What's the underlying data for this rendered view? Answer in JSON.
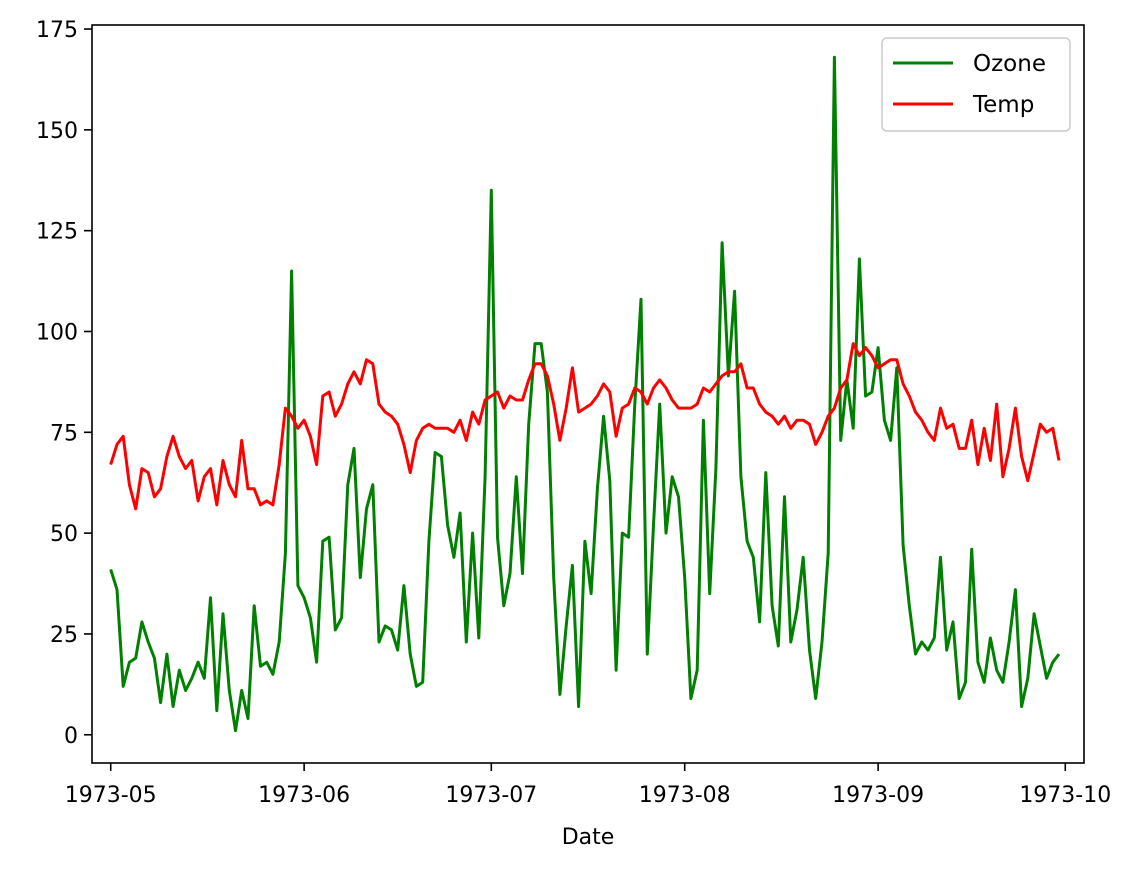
{
  "chart_data": {
    "type": "line",
    "title": "",
    "xlabel": "Date",
    "ylabel": "",
    "x_ticks": [
      "1973-05",
      "1973-06",
      "1973-07",
      "1973-08",
      "1973-09",
      "1973-10"
    ],
    "y_ticks": [
      0,
      25,
      50,
      75,
      100,
      125,
      150,
      175
    ],
    "xlim": [
      "1973-04-28",
      "1973-10-04"
    ],
    "ylim": [
      -7,
      176
    ],
    "grid": false,
    "legend_position": "top-right",
    "x": [
      "1973-05-01",
      "1973-05-02",
      "1973-05-03",
      "1973-05-04",
      "1973-05-05",
      "1973-05-06",
      "1973-05-07",
      "1973-05-08",
      "1973-05-09",
      "1973-05-10",
      "1973-05-11",
      "1973-05-12",
      "1973-05-13",
      "1973-05-14",
      "1973-05-15",
      "1973-05-16",
      "1973-05-17",
      "1973-05-18",
      "1973-05-19",
      "1973-05-20",
      "1973-05-21",
      "1973-05-22",
      "1973-05-23",
      "1973-05-24",
      "1973-05-25",
      "1973-05-26",
      "1973-05-27",
      "1973-05-28",
      "1973-05-29",
      "1973-05-30",
      "1973-05-31",
      "1973-06-01",
      "1973-06-02",
      "1973-06-03",
      "1973-06-04",
      "1973-06-05",
      "1973-06-06",
      "1973-06-07",
      "1973-06-08",
      "1973-06-09",
      "1973-06-10",
      "1973-06-11",
      "1973-06-12",
      "1973-06-13",
      "1973-06-14",
      "1973-06-15",
      "1973-06-16",
      "1973-06-17",
      "1973-06-18",
      "1973-06-19",
      "1973-06-20",
      "1973-06-21",
      "1973-06-22",
      "1973-06-23",
      "1973-06-24",
      "1973-06-25",
      "1973-06-26",
      "1973-06-27",
      "1973-06-28",
      "1973-06-29",
      "1973-06-30",
      "1973-07-01",
      "1973-07-02",
      "1973-07-03",
      "1973-07-04",
      "1973-07-05",
      "1973-07-06",
      "1973-07-07",
      "1973-07-08",
      "1973-07-09",
      "1973-07-10",
      "1973-07-11",
      "1973-07-12",
      "1973-07-13",
      "1973-07-14",
      "1973-07-15",
      "1973-07-16",
      "1973-07-17",
      "1973-07-18",
      "1973-07-19",
      "1973-07-20",
      "1973-07-21",
      "1973-07-22",
      "1973-07-23",
      "1973-07-24",
      "1973-07-25",
      "1973-07-26",
      "1973-07-27",
      "1973-07-28",
      "1973-07-29",
      "1973-07-30",
      "1973-07-31",
      "1973-08-01",
      "1973-08-02",
      "1973-08-03",
      "1973-08-04",
      "1973-08-05",
      "1973-08-06",
      "1973-08-07",
      "1973-08-08",
      "1973-08-09",
      "1973-08-10",
      "1973-08-11",
      "1973-08-12",
      "1973-08-13",
      "1973-08-14",
      "1973-08-15",
      "1973-08-16",
      "1973-08-17",
      "1973-08-18",
      "1973-08-19",
      "1973-08-20",
      "1973-08-21",
      "1973-08-22",
      "1973-08-23",
      "1973-08-24",
      "1973-08-25",
      "1973-08-26",
      "1973-08-27",
      "1973-08-28",
      "1973-08-29",
      "1973-08-30",
      "1973-08-31",
      "1973-09-01",
      "1973-09-02",
      "1973-09-03",
      "1973-09-04",
      "1973-09-05",
      "1973-09-06",
      "1973-09-07",
      "1973-09-08",
      "1973-09-09",
      "1973-09-10",
      "1973-09-11",
      "1973-09-12",
      "1973-09-13",
      "1973-09-14",
      "1973-09-15",
      "1973-09-16",
      "1973-09-17",
      "1973-09-18",
      "1973-09-19",
      "1973-09-20",
      "1973-09-21",
      "1973-09-22",
      "1973-09-23",
      "1973-09-24",
      "1973-09-25",
      "1973-09-26",
      "1973-09-27",
      "1973-09-28",
      "1973-09-29",
      "1973-09-30"
    ],
    "series": [
      {
        "name": "Ozone",
        "color": "#008000",
        "values": [
          41,
          36,
          12,
          18,
          19,
          28,
          23,
          19,
          8,
          20,
          7,
          16,
          11,
          14,
          18,
          14,
          34,
          6,
          30,
          11,
          1,
          11,
          4,
          32,
          17,
          18,
          15,
          23,
          45,
          115,
          37,
          34,
          29,
          18,
          48,
          49,
          26,
          29,
          62,
          71,
          39,
          56,
          62,
          23,
          27,
          26,
          21,
          37,
          20,
          12,
          13,
          48,
          70,
          69,
          52,
          44,
          55,
          23,
          50,
          24,
          64,
          135,
          49,
          32,
          40,
          64,
          40,
          77,
          97,
          97,
          85,
          39,
          10,
          27,
          42,
          7,
          48,
          35,
          61,
          79,
          63,
          16,
          50,
          49,
          82,
          108,
          20,
          52,
          82,
          50,
          64,
          59,
          39,
          9,
          16,
          78,
          35,
          66,
          122,
          89,
          110,
          64,
          48,
          44,
          28,
          65,
          32,
          22,
          59,
          23,
          31,
          44,
          21,
          9,
          23,
          45,
          168,
          73,
          88,
          76,
          118,
          84,
          85,
          96,
          78,
          73,
          91,
          47,
          32,
          20,
          23,
          21,
          24,
          44,
          21,
          28,
          9,
          13,
          46,
          18,
          13,
          24,
          16,
          13,
          23,
          36,
          7,
          14,
          30,
          22,
          14,
          18,
          20
        ]
      },
      {
        "name": "Temp",
        "color": "#ff0000",
        "values": [
          67,
          72,
          74,
          62,
          56,
          66,
          65,
          59,
          61,
          69,
          74,
          69,
          66,
          68,
          58,
          64,
          66,
          57,
          68,
          62,
          59,
          73,
          61,
          61,
          57,
          58,
          57,
          67,
          81,
          79,
          76,
          78,
          74,
          67,
          84,
          85,
          79,
          82,
          87,
          90,
          87,
          93,
          92,
          82,
          80,
          79,
          77,
          72,
          65,
          73,
          76,
          77,
          76,
          76,
          76,
          75,
          78,
          73,
          80,
          77,
          83,
          84,
          85,
          81,
          84,
          83,
          83,
          88,
          92,
          92,
          89,
          82,
          73,
          81,
          91,
          80,
          81,
          82,
          84,
          87,
          85,
          74,
          81,
          82,
          86,
          85,
          82,
          86,
          88,
          86,
          83,
          81,
          81,
          81,
          82,
          86,
          85,
          87,
          89,
          90,
          90,
          92,
          86,
          86,
          82,
          80,
          79,
          77,
          79,
          76,
          78,
          78,
          77,
          72,
          75,
          79,
          81,
          86,
          88,
          97,
          94,
          96,
          94,
          91,
          92,
          93,
          93,
          87,
          84,
          80,
          78,
          75,
          73,
          81,
          76,
          77,
          71,
          71,
          78,
          67,
          76,
          68,
          82,
          64,
          71,
          81,
          69,
          63,
          70,
          77,
          75,
          76,
          68
        ]
      }
    ]
  }
}
